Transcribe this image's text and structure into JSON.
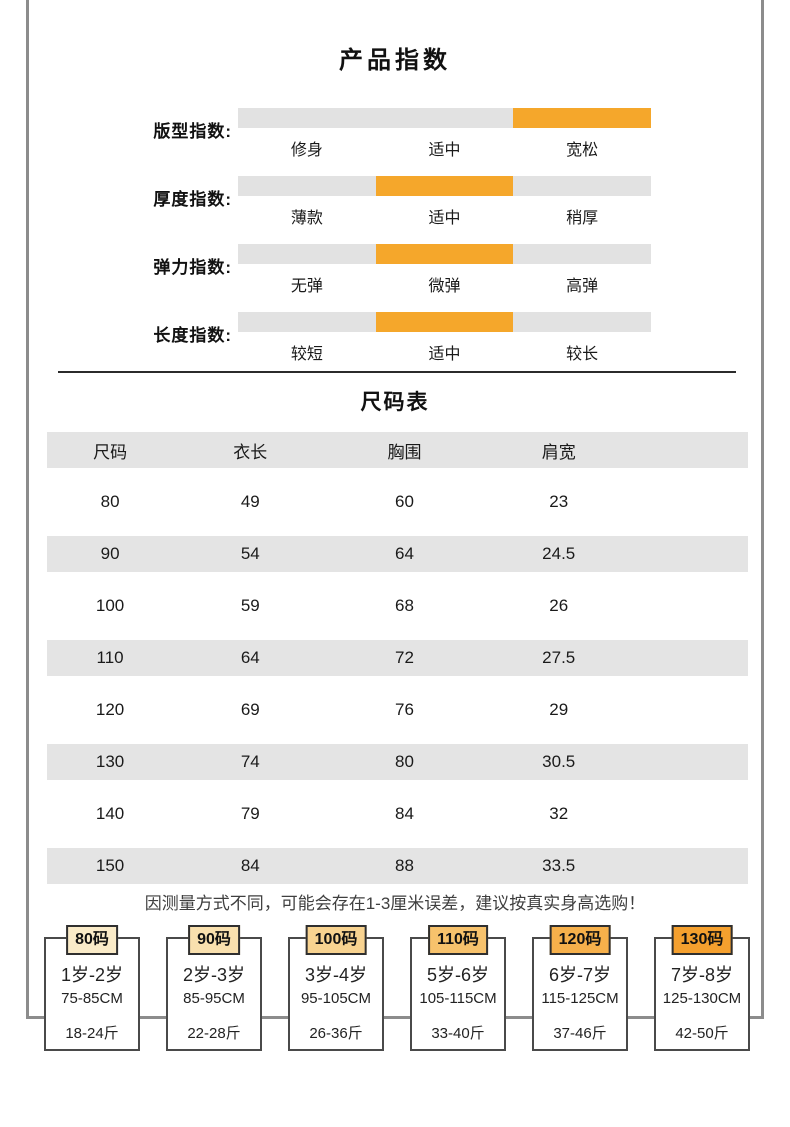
{
  "title": "产品指数",
  "size_table_title": "尺码表",
  "note": "因测量方式不同，可能会存在1-3厘米误差，建议按真实身高选购！",
  "colors": {
    "accent_orange": "#f5a72b",
    "bar_gray": "#e2e2e2",
    "row_band_gray": "#e4e4e4",
    "frame_gray": "#8c8c8c"
  },
  "indices": [
    {
      "label": "版型指数:",
      "options": [
        "修身",
        "适中",
        "宽松"
      ],
      "active": 2
    },
    {
      "label": "厚度指数:",
      "options": [
        "薄款",
        "适中",
        "稍厚"
      ],
      "active": 1
    },
    {
      "label": "弹力指数:",
      "options": [
        "无弹",
        "微弹",
        "高弹"
      ],
      "active": 1
    },
    {
      "label": "长度指数:",
      "options": [
        "较短",
        "适中",
        "较长"
      ],
      "active": 1
    }
  ],
  "size_table": {
    "headers": [
      "尺码",
      "衣长",
      "胸围",
      "肩宽"
    ],
    "rows": [
      [
        "80",
        "49",
        "60",
        "23"
      ],
      [
        "90",
        "54",
        "64",
        "24.5"
      ],
      [
        "100",
        "59",
        "68",
        "26"
      ],
      [
        "110",
        "64",
        "72",
        "27.5"
      ],
      [
        "120",
        "69",
        "76",
        "29"
      ],
      [
        "130",
        "74",
        "80",
        "30.5"
      ],
      [
        "140",
        "79",
        "84",
        "32"
      ],
      [
        "150",
        "84",
        "88",
        "33.5"
      ]
    ]
  },
  "size_cards": [
    {
      "tag": "80码",
      "age": "1岁-2岁",
      "height": "75-85CM",
      "weight": "18-24斤",
      "tag_color": "#faebc8"
    },
    {
      "tag": "90码",
      "age": "2岁-3岁",
      "height": "85-95CM",
      "weight": "22-28斤",
      "tag_color": "#f9e0ae"
    },
    {
      "tag": "100码",
      "age": "3岁-4岁",
      "height": "95-105CM",
      "weight": "26-36斤",
      "tag_color": "#f8d390"
    },
    {
      "tag": "110码",
      "age": "5岁-6岁",
      "height": "105-115CM",
      "weight": "33-40斤",
      "tag_color": "#f7c26c"
    },
    {
      "tag": "120码",
      "age": "6岁-7岁",
      "height": "115-125CM",
      "weight": "37-46斤",
      "tag_color": "#f6b04b"
    },
    {
      "tag": "130码",
      "age": "7岁-8岁",
      "height": "125-130CM",
      "weight": "42-50斤",
      "tag_color": "#f5a02e"
    }
  ]
}
